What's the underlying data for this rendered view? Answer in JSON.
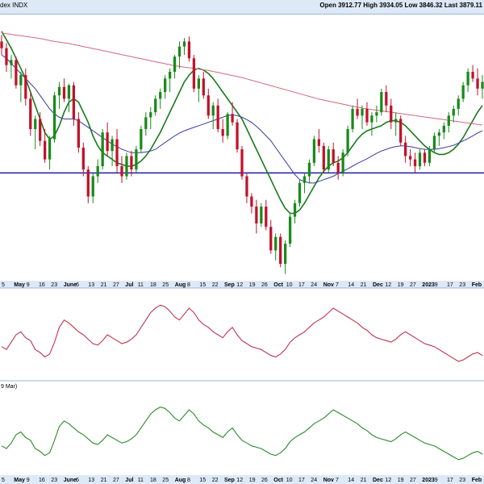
{
  "header": {
    "title": "dex INDX",
    "open_label": "Open",
    "open": "3912.77",
    "high_label": "High",
    "high": "3934.05",
    "low_label": "Low",
    "low": "3846.32",
    "last_label": "Last",
    "last": "3879.11"
  },
  "colors": {
    "up": "#1a8a1a",
    "down": "#c0122c",
    "ma_short": "#1a7a1a",
    "ma_mid": "#3a3aa0",
    "ma_long": "#d06a7a",
    "support": "#1c1ca8",
    "rsi": "#c0344c",
    "osc": "#2a8a2a",
    "band": "#dde9f7"
  },
  "chart_data": [
    {
      "type": "candlestick",
      "panel": "price",
      "ylim": [
        3560,
        4350
      ],
      "support_level": 3880,
      "candles": [
        [
          4270,
          4290,
          4230,
          4250
        ],
        [
          4250,
          4265,
          4180,
          4200
        ],
        [
          4200,
          4230,
          4160,
          4215
        ],
        [
          4215,
          4225,
          4130,
          4140
        ],
        [
          4140,
          4180,
          4090,
          4170
        ],
        [
          4170,
          4190,
          4080,
          4100
        ],
        [
          4100,
          4120,
          3990,
          4010
        ],
        [
          4010,
          4050,
          3950,
          4040
        ],
        [
          4040,
          4060,
          3960,
          3975
        ],
        [
          3975,
          4010,
          3910,
          3920
        ],
        [
          3920,
          3990,
          3890,
          3980
        ],
        [
          3980,
          4120,
          3970,
          4110
        ],
        [
          4110,
          4150,
          4070,
          4135
        ],
        [
          4135,
          4160,
          4090,
          4100
        ],
        [
          4100,
          4145,
          4060,
          4140
        ],
        [
          4140,
          4150,
          4020,
          4040
        ],
        [
          4040,
          4060,
          3940,
          3955
        ],
        [
          3955,
          3970,
          3870,
          3890
        ],
        [
          3890,
          3900,
          3790,
          3810
        ],
        [
          3810,
          3880,
          3790,
          3870
        ],
        [
          3870,
          3920,
          3850,
          3900
        ],
        [
          3900,
          4010,
          3890,
          4000
        ],
        [
          4000,
          4030,
          3930,
          3945
        ],
        [
          3945,
          3990,
          3900,
          3980
        ],
        [
          3980,
          4010,
          3880,
          3900
        ],
        [
          3900,
          3930,
          3850,
          3870
        ],
        [
          3870,
          3940,
          3860,
          3930
        ],
        [
          3930,
          3945,
          3870,
          3890
        ],
        [
          3890,
          3960,
          3880,
          3950
        ],
        [
          3950,
          4020,
          3940,
          4010
        ],
        [
          4010,
          4060,
          3990,
          4045
        ],
        [
          4045,
          4075,
          4010,
          4060
        ],
        [
          4060,
          4110,
          4050,
          4100
        ],
        [
          4100,
          4130,
          4070,
          4120
        ],
        [
          4120,
          4170,
          4100,
          4160
        ],
        [
          4160,
          4190,
          4120,
          4180
        ],
        [
          4180,
          4230,
          4160,
          4225
        ],
        [
          4225,
          4270,
          4190,
          4255
        ],
        [
          4255,
          4280,
          4230,
          4270
        ],
        [
          4270,
          4285,
          4210,
          4220
        ],
        [
          4220,
          4230,
          4120,
          4130
        ],
        [
          4130,
          4170,
          4090,
          4160
        ],
        [
          4160,
          4180,
          4100,
          4110
        ],
        [
          4110,
          4130,
          4040,
          4050
        ],
        [
          4050,
          4090,
          4010,
          4080
        ],
        [
          4080,
          4100,
          4000,
          4010
        ],
        [
          4010,
          4040,
          3970,
          3990
        ],
        [
          3990,
          4060,
          3980,
          4055
        ],
        [
          4055,
          4090,
          4020,
          4030
        ],
        [
          4030,
          4040,
          3940,
          3950
        ],
        [
          3950,
          3960,
          3860,
          3870
        ],
        [
          3870,
          3880,
          3790,
          3810
        ],
        [
          3810,
          3820,
          3760,
          3780
        ],
        [
          3780,
          3800,
          3700,
          3730
        ],
        [
          3730,
          3790,
          3720,
          3780
        ],
        [
          3780,
          3800,
          3710,
          3720
        ],
        [
          3720,
          3740,
          3640,
          3650
        ],
        [
          3650,
          3700,
          3620,
          3690
        ],
        [
          3690,
          3700,
          3600,
          3610
        ],
        [
          3610,
          3680,
          3580,
          3670
        ],
        [
          3670,
          3760,
          3660,
          3750
        ],
        [
          3750,
          3800,
          3730,
          3790
        ],
        [
          3790,
          3860,
          3780,
          3850
        ],
        [
          3850,
          3880,
          3820,
          3870
        ],
        [
          3870,
          3920,
          3850,
          3910
        ],
        [
          3910,
          3990,
          3900,
          3980
        ],
        [
          3980,
          4010,
          3940,
          3960
        ],
        [
          3960,
          3970,
          3880,
          3890
        ],
        [
          3890,
          3960,
          3880,
          3950
        ],
        [
          3950,
          3970,
          3900,
          3910
        ],
        [
          3910,
          3930,
          3860,
          3880
        ],
        [
          3880,
          3950,
          3870,
          3940
        ],
        [
          3940,
          4020,
          3930,
          4010
        ],
        [
          4010,
          4080,
          4000,
          4070
        ],
        [
          4070,
          4100,
          4040,
          4050
        ],
        [
          4050,
          4080,
          4010,
          4070
        ],
        [
          4070,
          4090,
          4020,
          4030
        ],
        [
          4030,
          4060,
          3990,
          4050
        ],
        [
          4050,
          4080,
          4030,
          4060
        ],
        [
          4060,
          4130,
          4050,
          4120
        ],
        [
          4120,
          4140,
          4060,
          4080
        ],
        [
          4080,
          4100,
          4010,
          4030
        ],
        [
          4030,
          4060,
          3990,
          4040
        ],
        [
          4040,
          4050,
          3960,
          3970
        ],
        [
          3970,
          3990,
          3910,
          3930
        ],
        [
          3930,
          3950,
          3900,
          3920
        ],
        [
          3920,
          3940,
          3880,
          3900
        ],
        [
          3900,
          3950,
          3890,
          3940
        ],
        [
          3940,
          3950,
          3900,
          3910
        ],
        [
          3910,
          3960,
          3900,
          3950
        ],
        [
          3950,
          4000,
          3940,
          3990
        ],
        [
          3990,
          4010,
          3960,
          4000
        ],
        [
          4000,
          4030,
          3980,
          4020
        ],
        [
          4020,
          4060,
          4000,
          4050
        ],
        [
          4050,
          4080,
          4030,
          4070
        ],
        [
          4070,
          4110,
          4050,
          4100
        ],
        [
          4100,
          4150,
          4090,
          4140
        ],
        [
          4140,
          4190,
          4120,
          4180
        ],
        [
          4180,
          4200,
          4150,
          4160
        ],
        [
          4160,
          4190,
          4110,
          4130
        ],
        [
          4130,
          4170,
          4100,
          4150
        ]
      ],
      "moving_averages": [
        {
          "label": "ma_short",
          "values": [
            4300,
            4275,
            4250,
            4220,
            4190,
            4160,
            4120,
            4080,
            4040,
            4000,
            3980,
            3990,
            4020,
            4060,
            4090,
            4100,
            4090,
            4060,
            4030,
            3990,
            3960,
            3940,
            3930,
            3920,
            3910,
            3905,
            3900,
            3900,
            3905,
            3915,
            3930,
            3950,
            3975,
            4000,
            4030,
            4060,
            4090,
            4120,
            4150,
            4170,
            4185,
            4190,
            4185,
            4175,
            4160,
            4140,
            4120,
            4100,
            4080,
            4060,
            4040,
            4010,
            3980,
            3950,
            3920,
            3890,
            3860,
            3830,
            3800,
            3775,
            3760,
            3760,
            3770,
            3790,
            3815,
            3840,
            3865,
            3885,
            3900,
            3910,
            3915,
            3925,
            3940,
            3960,
            3980,
            3995,
            4005,
            4010,
            4015,
            4020,
            4030,
            4035,
            4035,
            4030,
            4020,
            4005,
            3990,
            3975,
            3960,
            3950,
            3940,
            3935,
            3935,
            3940,
            3950,
            3965,
            3985,
            4010,
            4035,
            4060,
            4080
          ]
        },
        {
          "label": "ma_mid",
          "values": [
            4230,
            4220,
            4205,
            4190,
            4175,
            4160,
            4145,
            4130,
            4110,
            4090,
            4070,
            4055,
            4045,
            4040,
            4040,
            4040,
            4035,
            4025,
            4015,
            4005,
            3995,
            3985,
            3975,
            3965,
            3958,
            3950,
            3945,
            3940,
            3940,
            3940,
            3942,
            3945,
            3950,
            3960,
            3970,
            3980,
            3990,
            3998,
            4005,
            4010,
            4015,
            4020,
            4025,
            4030,
            4035,
            4040,
            4045,
            4050,
            4052,
            4050,
            4045,
            4038,
            4030,
            4018,
            4005,
            3990,
            3975,
            3955,
            3935,
            3915,
            3895,
            3875,
            3860,
            3855,
            3850,
            3850,
            3855,
            3860,
            3865,
            3870,
            3878,
            3885,
            3892,
            3900,
            3908,
            3915,
            3922,
            3930,
            3938,
            3945,
            3950,
            3955,
            3958,
            3960,
            3960,
            3958,
            3955,
            3952,
            3950,
            3950,
            3950,
            3952,
            3955,
            3958,
            3962,
            3968,
            3975,
            3982,
            3990,
            3998,
            4005
          ]
        },
        {
          "label": "ma_long",
          "values": [
            4295,
            4293,
            4291,
            4289,
            4287,
            4285,
            4283,
            4281,
            4279,
            4276,
            4273,
            4270,
            4268,
            4266,
            4264,
            4261,
            4258,
            4255,
            4252,
            4249,
            4246,
            4243,
            4240,
            4237,
            4234,
            4231,
            4228,
            4225,
            4222,
            4219,
            4216,
            4213,
            4210,
            4207,
            4204,
            4201,
            4198,
            4196,
            4194,
            4192,
            4190,
            4188,
            4186,
            4184,
            4181,
            4178,
            4175,
            4172,
            4169,
            4166,
            4163,
            4159,
            4155,
            4151,
            4147,
            4143,
            4139,
            4135,
            4131,
            4127,
            4123,
            4119,
            4115,
            4111,
            4107,
            4103,
            4099,
            4096,
            4093,
            4090,
            4087,
            4084,
            4081,
            4078,
            4075,
            4072,
            4070,
            4068,
            4066,
            4064,
            4062,
            4060,
            4058,
            4056,
            4054,
            4052,
            4050,
            4048,
            4046,
            4044,
            4042,
            4040,
            4038,
            4036,
            4034,
            4032,
            4030,
            4028,
            4026,
            4024,
            4022
          ]
        }
      ]
    },
    {
      "type": "line",
      "panel": "indicator_1",
      "ylim": [
        20,
        80
      ],
      "series": [
        {
          "values": [
            42,
            40,
            45,
            50,
            52,
            48,
            46,
            40,
            38,
            35,
            37,
            45,
            55,
            60,
            58,
            55,
            52,
            50,
            47,
            44,
            43,
            46,
            50,
            48,
            46,
            44,
            45,
            47,
            50,
            55,
            60,
            65,
            68,
            70,
            69,
            66,
            62,
            60,
            64,
            68,
            65,
            60,
            57,
            55,
            52,
            50,
            48,
            52,
            55,
            50,
            46,
            44,
            42,
            41,
            40,
            38,
            36,
            35,
            37,
            40,
            45,
            48,
            50,
            52,
            55,
            58,
            60,
            62,
            65,
            68,
            66,
            64,
            62,
            60,
            58,
            55,
            53,
            50,
            48,
            47,
            46,
            45,
            47,
            50,
            52,
            50,
            48,
            46,
            44,
            43,
            42,
            40,
            38,
            36,
            34,
            32,
            33,
            35,
            37,
            38,
            36
          ]
        }
      ]
    },
    {
      "type": "line",
      "panel": "indicator_2",
      "label": "9 Mar)",
      "ylim": [
        20,
        80
      ],
      "series": [
        {
          "values": [
            40,
            38,
            42,
            48,
            50,
            46,
            44,
            38,
            36,
            33,
            35,
            44,
            54,
            58,
            56,
            53,
            50,
            48,
            45,
            42,
            41,
            44,
            48,
            46,
            44,
            42,
            43,
            45,
            48,
            53,
            58,
            63,
            66,
            68,
            67,
            64,
            60,
            58,
            62,
            66,
            63,
            58,
            55,
            53,
            50,
            48,
            46,
            50,
            53,
            48,
            44,
            42,
            40,
            39,
            38,
            36,
            34,
            33,
            35,
            38,
            43,
            46,
            48,
            50,
            53,
            56,
            58,
            60,
            63,
            66,
            64,
            62,
            60,
            58,
            56,
            53,
            51,
            48,
            46,
            45,
            44,
            43,
            45,
            48,
            50,
            48,
            46,
            44,
            42,
            41,
            40,
            38,
            36,
            34,
            32,
            30,
            31,
            33,
            35,
            36,
            34
          ]
        }
      ]
    }
  ],
  "xaxis": {
    "ticks": [
      "5",
      "May",
      "9",
      "16",
      "23",
      "June",
      "6",
      "13",
      "21",
      "27",
      "Jul",
      "11",
      "18",
      "25",
      "Aug",
      "8",
      "15",
      "22",
      "Sep",
      "12",
      "19",
      "26",
      "Oct",
      "10",
      "17",
      "24",
      "Nov",
      "7",
      "14",
      "21",
      "Dec",
      "12",
      "19",
      "27",
      "2023",
      "9",
      "17",
      "23",
      "Feb"
    ],
    "bold": [
      "May",
      "June",
      "Jul",
      "Aug",
      "Sep",
      "Oct",
      "Nov",
      "Dec",
      "2023",
      "Feb"
    ]
  }
}
